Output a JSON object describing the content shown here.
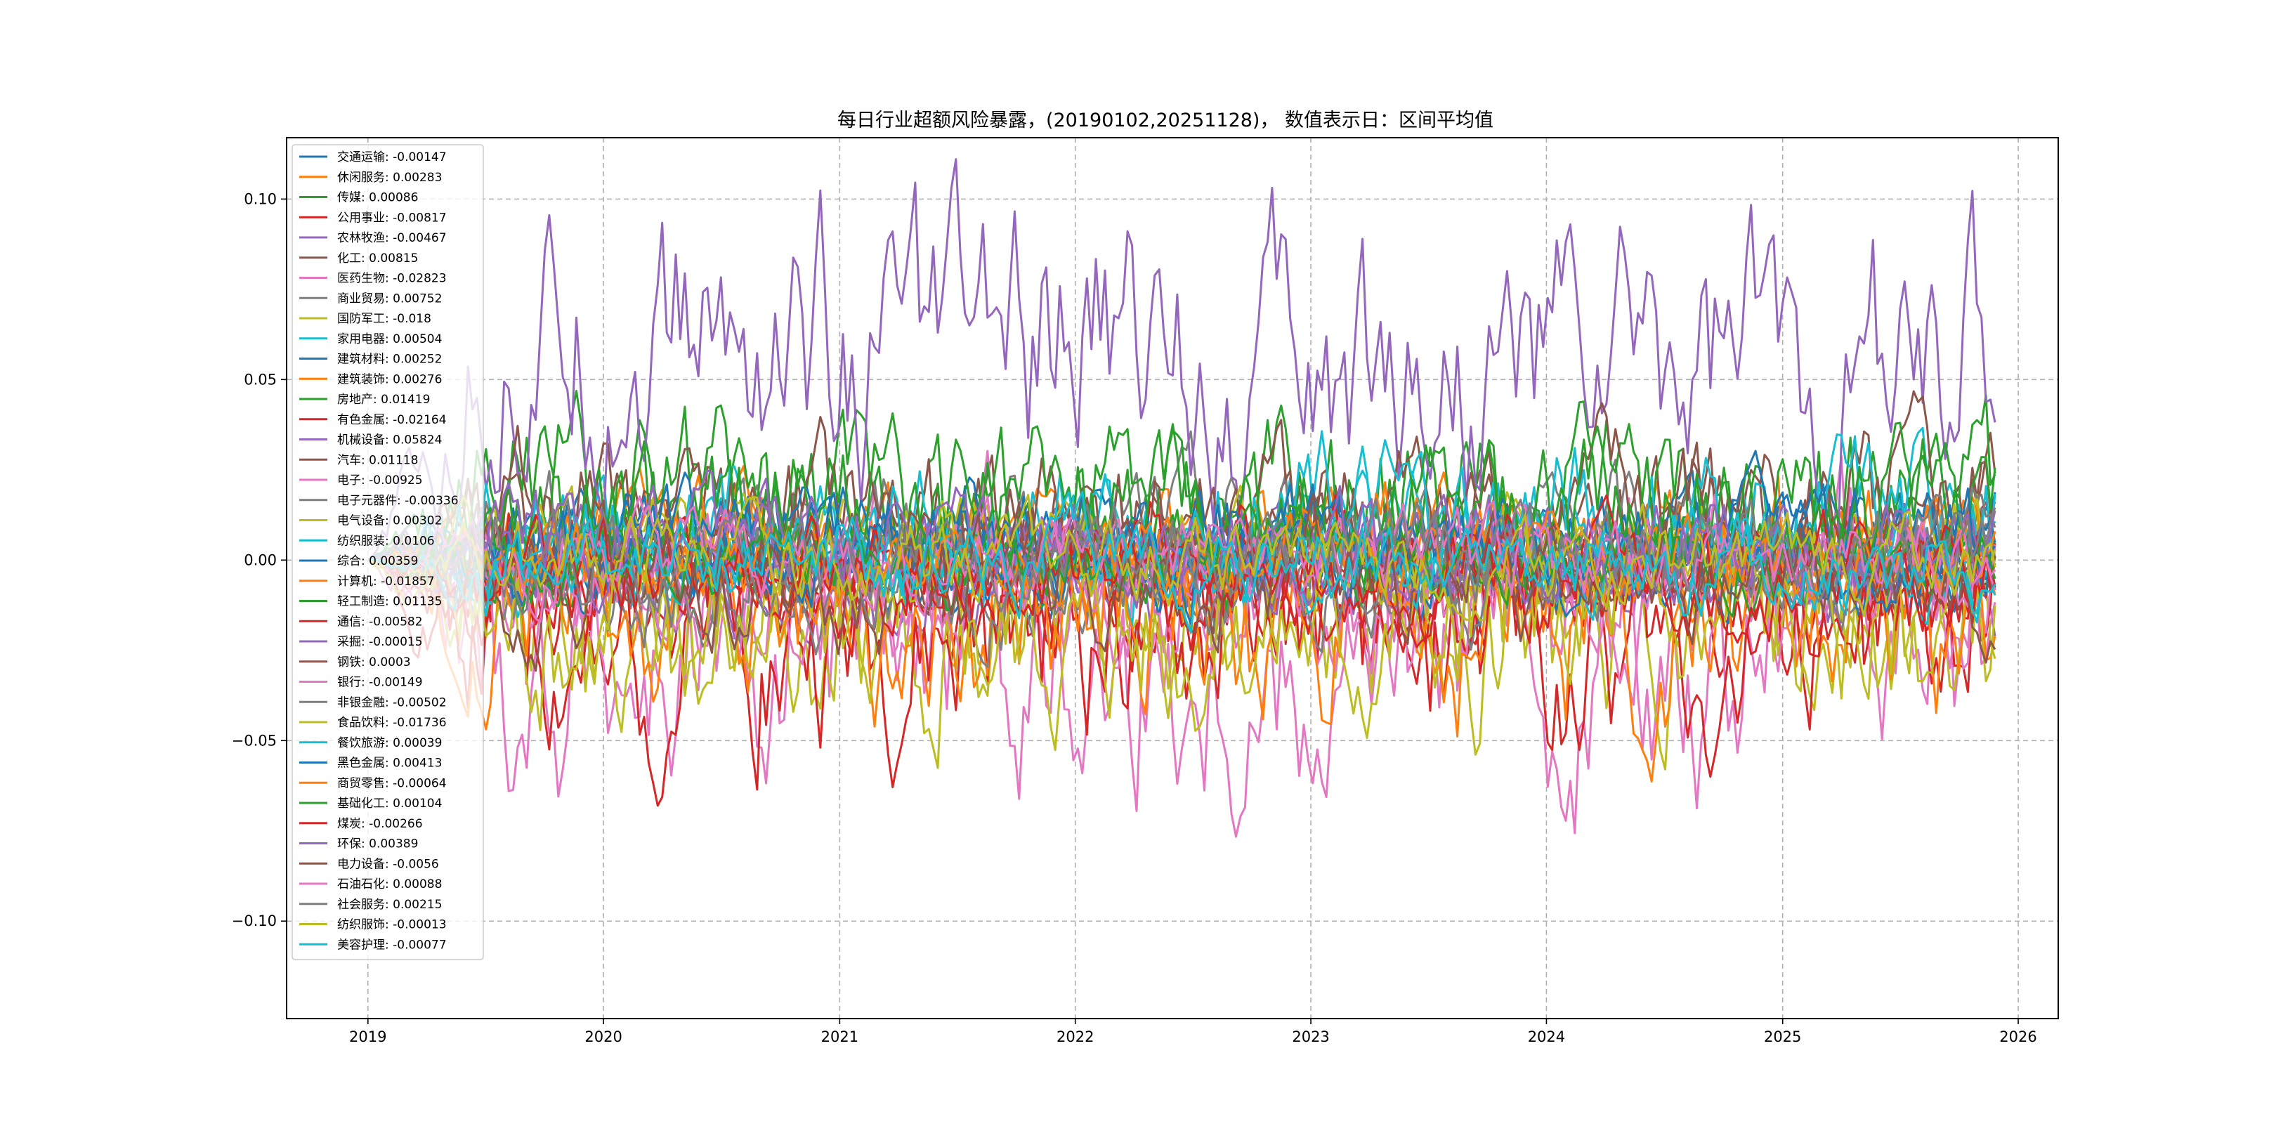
{
  "chart_data": {
    "type": "line",
    "title": "每日行业超额风险暴露，(20190102,20251128)， 数值表示日：区间平均值",
    "xlabel": "",
    "ylabel": "",
    "x_range": [
      "2019-01-02",
      "2025-11-28"
    ],
    "xlim": [
      "2018-08-28",
      "2026-03-04"
    ],
    "ylim": [
      -0.127,
      0.117
    ],
    "x_ticks": [
      "2019",
      "2020",
      "2021",
      "2022",
      "2023",
      "2024",
      "2025",
      "2026"
    ],
    "y_ticks": [
      {
        "value": 0.1,
        "label": "0.10"
      },
      {
        "value": 0.05,
        "label": "0.05"
      },
      {
        "value": 0.0,
        "label": "0.00"
      },
      {
        "value": -0.05,
        "label": "−0.05"
      },
      {
        "value": -0.1,
        "label": "−0.10"
      }
    ],
    "grid": true,
    "legend_position": "upper left",
    "series": [
      {
        "name": "交通运输",
        "mean": -0.00147,
        "legend": "交通运输: -0.00147",
        "color": "#1f77b4"
      },
      {
        "name": "休闲服务",
        "mean": 0.00283,
        "legend": "休闲服务: 0.00283",
        "color": "#ff7f0e"
      },
      {
        "name": "传媒",
        "mean": 0.00086,
        "legend": "传媒: 0.00086",
        "color": "#2ca02c"
      },
      {
        "name": "公用事业",
        "mean": -0.00817,
        "legend": "公用事业: -0.00817",
        "color": "#d62728"
      },
      {
        "name": "农林牧渔",
        "mean": -0.00467,
        "legend": "农林牧渔: -0.00467",
        "color": "#9467bd"
      },
      {
        "name": "化工",
        "mean": 0.00815,
        "legend": "化工: 0.00815",
        "color": "#8c564b"
      },
      {
        "name": "医药生物",
        "mean": -0.02823,
        "legend": "医药生物: -0.02823",
        "color": "#e377c2"
      },
      {
        "name": "商业贸易",
        "mean": 0.00752,
        "legend": "商业贸易: 0.00752",
        "color": "#7f7f7f"
      },
      {
        "name": "国防军工",
        "mean": -0.018,
        "legend": "国防军工: -0.018",
        "color": "#bcbd22"
      },
      {
        "name": "家用电器",
        "mean": 0.00504,
        "legend": "家用电器: 0.00504",
        "color": "#17becf"
      },
      {
        "name": "建筑材料",
        "mean": 0.00252,
        "legend": "建筑材料: 0.00252",
        "color": "#1f77b4"
      },
      {
        "name": "建筑装饰",
        "mean": 0.00276,
        "legend": "建筑装饰: 0.00276",
        "color": "#ff7f0e"
      },
      {
        "name": "房地产",
        "mean": 0.01419,
        "legend": "房地产: 0.01419",
        "color": "#2ca02c"
      },
      {
        "name": "有色金属",
        "mean": -0.02164,
        "legend": "有色金属: -0.02164",
        "color": "#d62728"
      },
      {
        "name": "机械设备",
        "mean": 0.05824,
        "legend": "机械设备: 0.05824",
        "color": "#9467bd"
      },
      {
        "name": "汽车",
        "mean": 0.01118,
        "legend": "汽车: 0.01118",
        "color": "#8c564b"
      },
      {
        "name": "电子",
        "mean": -0.00925,
        "legend": "电子: -0.00925",
        "color": "#e377c2"
      },
      {
        "name": "电子元器件",
        "mean": -0.00336,
        "legend": "电子元器件: -0.00336",
        "color": "#7f7f7f"
      },
      {
        "name": "电气设备",
        "mean": 0.00302,
        "legend": "电气设备: 0.00302",
        "color": "#bcbd22"
      },
      {
        "name": "纺织服装",
        "mean": 0.0106,
        "legend": "纺织服装: 0.0106",
        "color": "#17becf"
      },
      {
        "name": "综合",
        "mean": 0.00359,
        "legend": "综合: 0.00359",
        "color": "#1f77b4"
      },
      {
        "name": "计算机",
        "mean": -0.01857,
        "legend": "计算机: -0.01857",
        "color": "#ff7f0e"
      },
      {
        "name": "轻工制造",
        "mean": 0.01135,
        "legend": "轻工制造: 0.01135",
        "color": "#2ca02c"
      },
      {
        "name": "通信",
        "mean": -0.00582,
        "legend": "通信: -0.00582",
        "color": "#d62728"
      },
      {
        "name": "采掘",
        "mean": -0.00015,
        "legend": "采掘: -0.00015",
        "color": "#9467bd"
      },
      {
        "name": "钢铁",
        "mean": 0.0003,
        "legend": "钢铁: 0.0003",
        "color": "#8c564b"
      },
      {
        "name": "银行",
        "mean": -0.00149,
        "legend": "银行: -0.00149",
        "color": "#e377c2"
      },
      {
        "name": "非银金融",
        "mean": -0.00502,
        "legend": "非银金融: -0.00502",
        "color": "#7f7f7f"
      },
      {
        "name": "食品饮料",
        "mean": -0.01736,
        "legend": "食品饮料: -0.01736",
        "color": "#bcbd22"
      },
      {
        "name": "餐饮旅游",
        "mean": 0.00039,
        "legend": "餐饮旅游: 0.00039",
        "color": "#17becf"
      },
      {
        "name": "黑色金属",
        "mean": 0.00413,
        "legend": "黑色金属: 0.00413",
        "color": "#1f77b4"
      },
      {
        "name": "商贸零售",
        "mean": -0.00064,
        "legend": "商贸零售: -0.00064",
        "color": "#ff7f0e"
      },
      {
        "name": "基础化工",
        "mean": 0.00104,
        "legend": "基础化工: 0.00104",
        "color": "#2ca02c"
      },
      {
        "name": "煤炭",
        "mean": -0.00266,
        "legend": "煤炭: -0.00266",
        "color": "#d62728"
      },
      {
        "name": "环保",
        "mean": 0.00389,
        "legend": "环保: 0.00389",
        "color": "#9467bd"
      },
      {
        "name": "电力设备",
        "mean": -0.0056,
        "legend": "电力设备: -0.0056",
        "color": "#8c564b"
      },
      {
        "name": "石油石化",
        "mean": 0.00088,
        "legend": "石油石化: 0.00088",
        "color": "#e377c2"
      },
      {
        "name": "社会服务",
        "mean": 0.00215,
        "legend": "社会服务: 0.00215",
        "color": "#7f7f7f"
      },
      {
        "name": "纺织服饰",
        "mean": -0.00013,
        "legend": "纺织服饰: -0.00013",
        "color": "#bcbd22"
      },
      {
        "name": "美容护理",
        "mean": -0.00077,
        "legend": "美容护理: -0.00077",
        "color": "#17becf"
      }
    ]
  }
}
